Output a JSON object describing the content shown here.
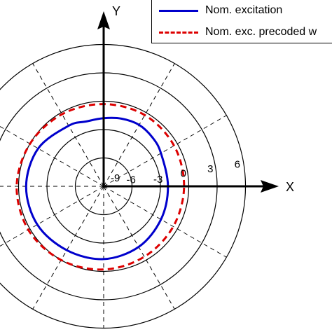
{
  "chart_data": {
    "type": "polar",
    "axes": {
      "x_label": "X",
      "y_label": "Y"
    },
    "ring_labels": [
      "-9",
      "-6",
      "-3",
      "0",
      "3",
      "6"
    ],
    "ring_values": [
      -9,
      -6,
      -3,
      0,
      3,
      6
    ],
    "radial_min": -9,
    "spoke_angles_deg": [
      30,
      60,
      120,
      150,
      210,
      240,
      300,
      330
    ],
    "series": [
      {
        "name": "Nom. excitation",
        "color": "#0000cc",
        "style": "solid",
        "points": [
          {
            "angle_deg": 0,
            "value": -2.2
          },
          {
            "angle_deg": 30,
            "value": -2.0
          },
          {
            "angle_deg": 45,
            "value": -1.7
          },
          {
            "angle_deg": 60,
            "value": -1.5
          },
          {
            "angle_deg": 75,
            "value": -1.6
          },
          {
            "angle_deg": 90,
            "value": -1.8
          },
          {
            "angle_deg": 105,
            "value": -1.9
          },
          {
            "angle_deg": 120,
            "value": -1.6
          },
          {
            "angle_deg": 150,
            "value": -1.0
          },
          {
            "angle_deg": 180,
            "value": -0.8
          },
          {
            "angle_deg": 210,
            "value": -0.9
          },
          {
            "angle_deg": 240,
            "value": -1.2
          },
          {
            "angle_deg": 270,
            "value": -1.3
          },
          {
            "angle_deg": 300,
            "value": -1.6
          },
          {
            "angle_deg": 330,
            "value": -2.0
          },
          {
            "angle_deg": 360,
            "value": -2.2
          }
        ]
      },
      {
        "name": "Nom. exc. precoded w",
        "color": "#dd0000",
        "style": "dashed",
        "points": [
          {
            "angle_deg": 0,
            "value": -0.5
          },
          {
            "angle_deg": 30,
            "value": -0.4
          },
          {
            "angle_deg": 60,
            "value": -0.3
          },
          {
            "angle_deg": 90,
            "value": -0.3
          },
          {
            "angle_deg": 120,
            "value": -0.2
          },
          {
            "angle_deg": 150,
            "value": 0.0
          },
          {
            "angle_deg": 180,
            "value": 0.2
          },
          {
            "angle_deg": 210,
            "value": 0.2
          },
          {
            "angle_deg": 240,
            "value": 0.0
          },
          {
            "angle_deg": 270,
            "value": -0.2
          },
          {
            "angle_deg": 300,
            "value": -0.4
          },
          {
            "angle_deg": 330,
            "value": -0.5
          },
          {
            "angle_deg": 360,
            "value": -0.5
          }
        ]
      }
    ],
    "legend_position": "top-right"
  }
}
